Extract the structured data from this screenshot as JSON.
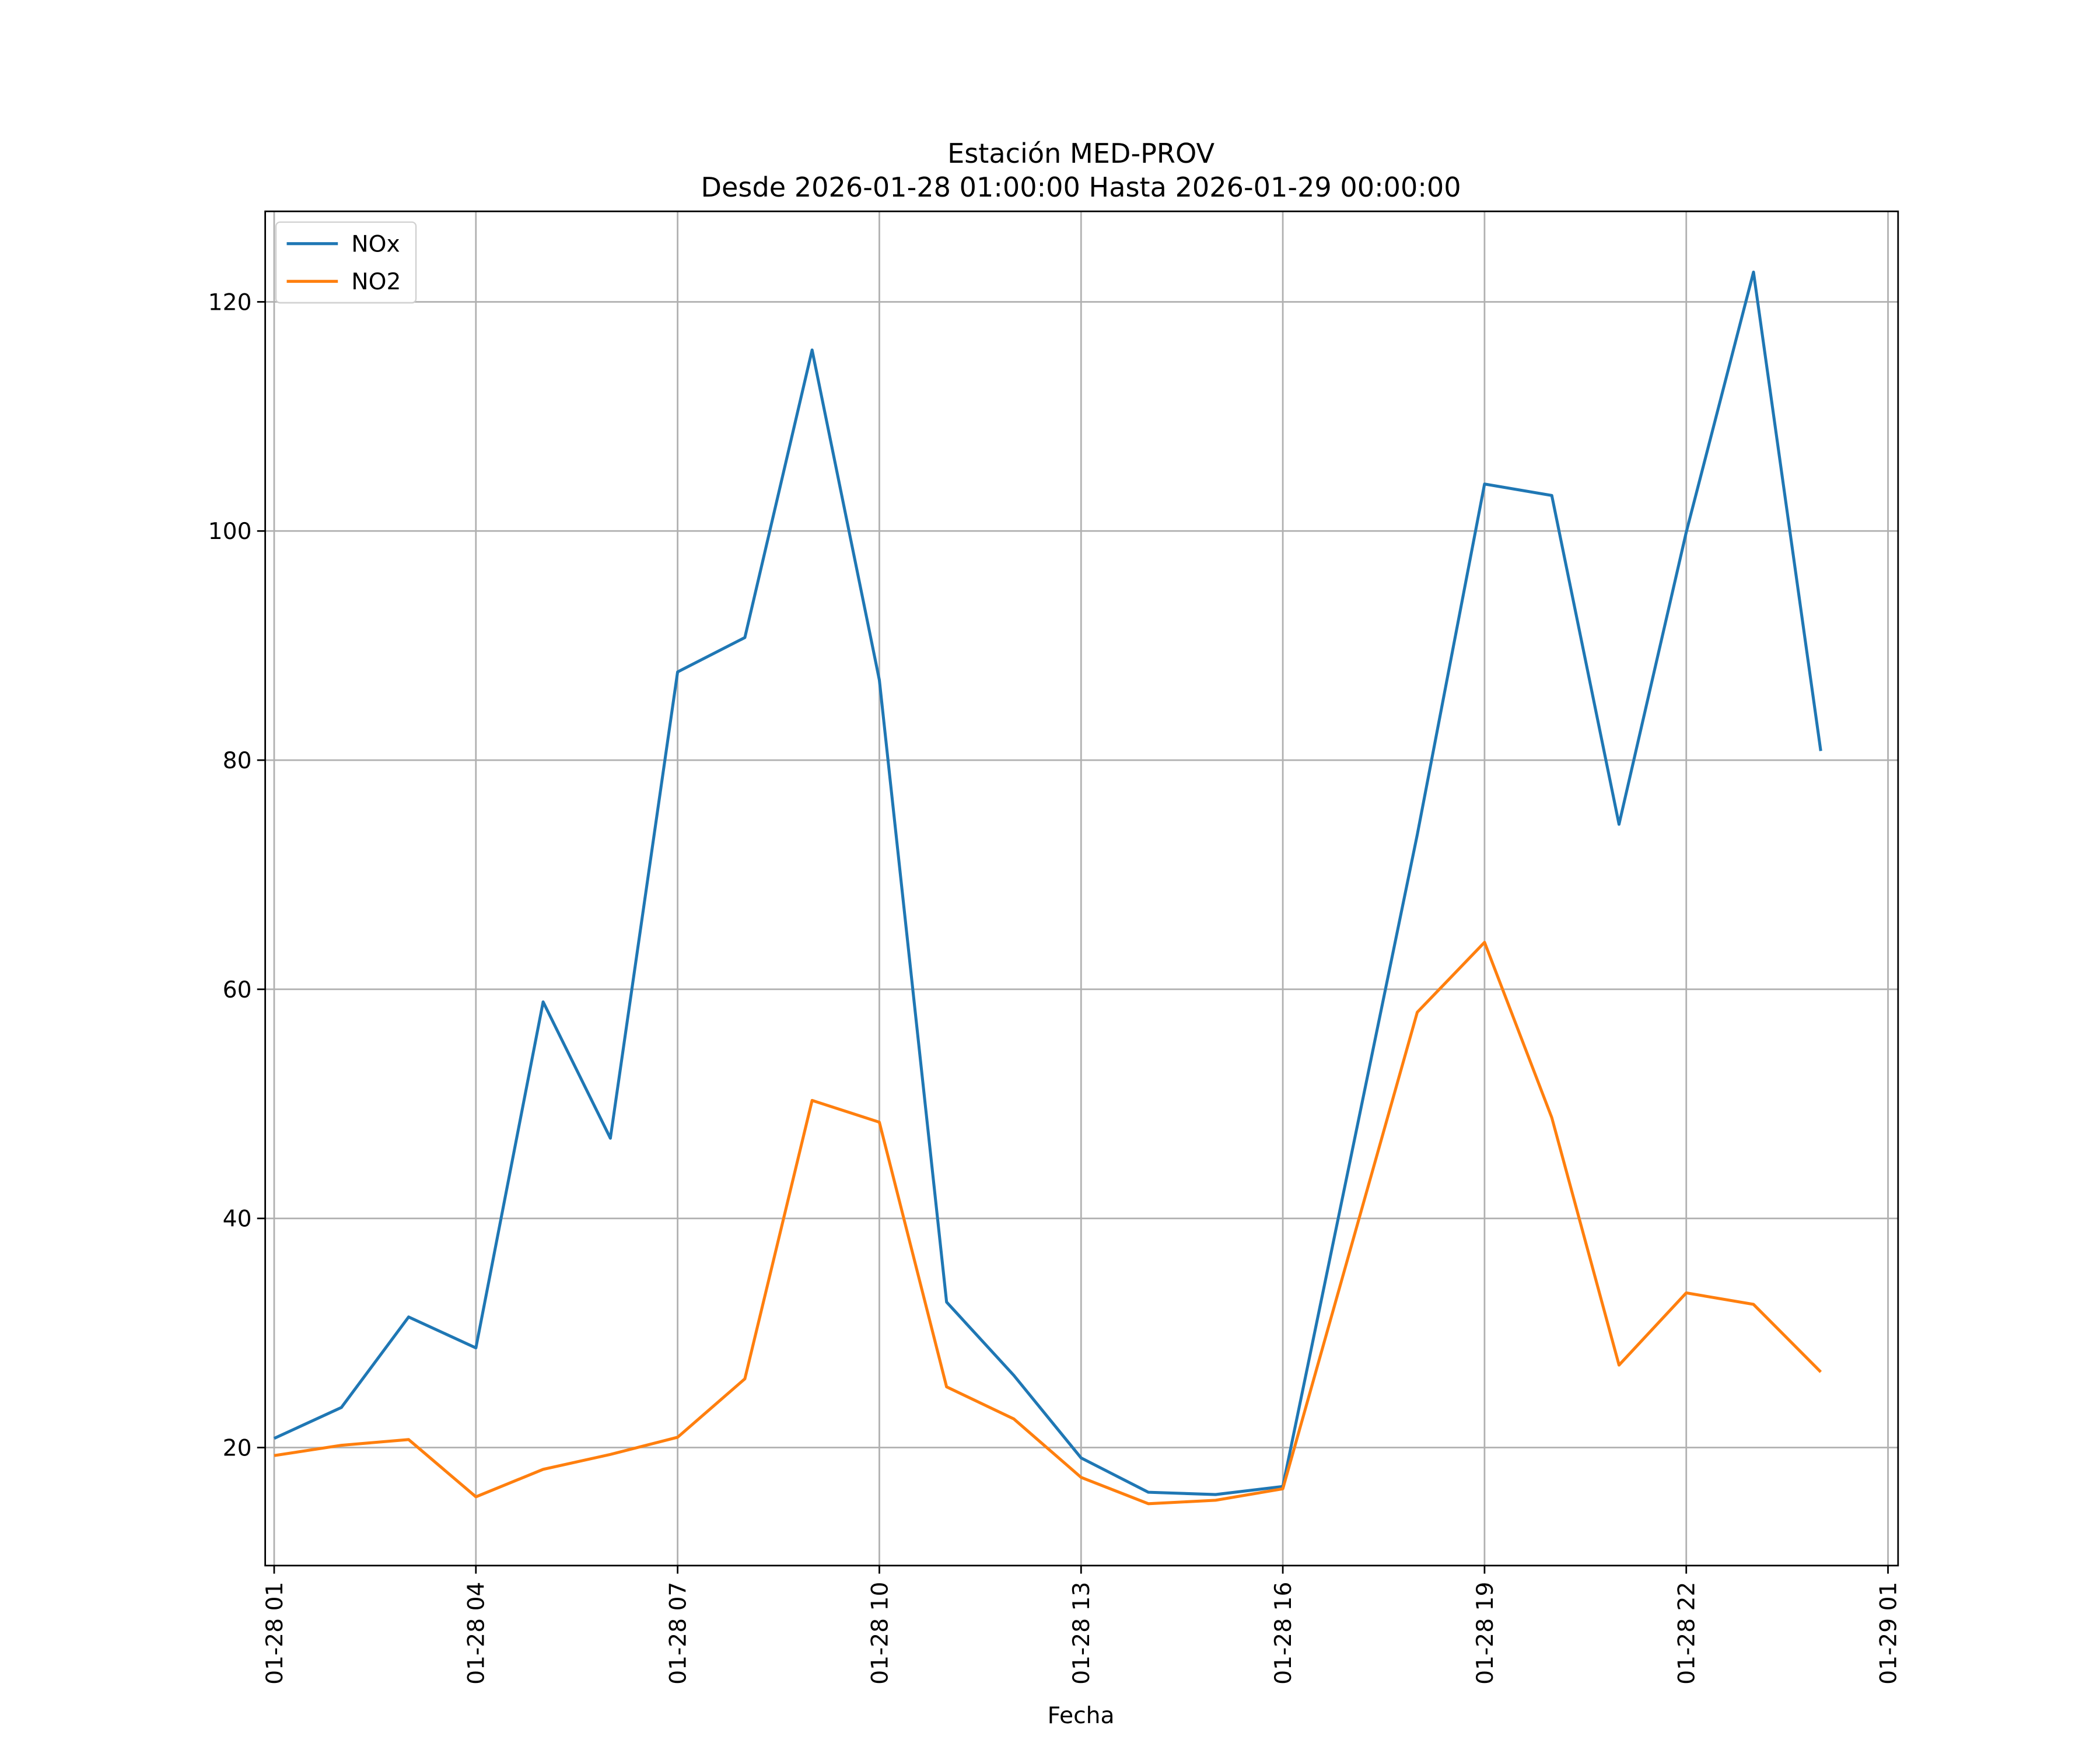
{
  "chart_data": {
    "type": "line",
    "title": "Estación MED-PROV",
    "subtitle": "Desde 2026-01-28 01:00:00 Hasta 2026-01-29 00:00:00",
    "x_label": "Fecha",
    "x": [
      "01-28 01",
      "01-28 02",
      "01-28 03",
      "01-28 04",
      "01-28 05",
      "01-28 06",
      "01-28 07",
      "01-28 08",
      "01-28 09",
      "01-28 10",
      "01-28 11",
      "01-28 12",
      "01-28 13",
      "01-28 14",
      "01-28 15",
      "01-28 16",
      "01-28 17",
      "01-28 18",
      "01-28 19",
      "01-28 20",
      "01-28 21",
      "01-28 22",
      "01-28 23",
      "01-29 00"
    ],
    "series": [
      {
        "name": "NOx",
        "color": "#1f77b4",
        "values": [
          20.8,
          23.5,
          31.4,
          28.7,
          58.9,
          47.0,
          87.7,
          90.7,
          115.8,
          87.0,
          32.7,
          26.3,
          19.1,
          16.1,
          15.9,
          16.6,
          45.0,
          73.5,
          104.1,
          103.1,
          74.4,
          99.9,
          122.6,
          80.8
        ]
      },
      {
        "name": "NO2",
        "color": "#ff7f0e",
        "values": [
          19.3,
          20.2,
          20.7,
          15.7,
          18.1,
          19.4,
          20.9,
          26.0,
          50.3,
          48.4,
          25.3,
          22.5,
          17.4,
          15.1,
          15.4,
          16.4,
          37.2,
          58.0,
          64.1,
          48.8,
          27.2,
          33.5,
          32.5,
          26.6
        ]
      }
    ],
    "xlim": [
      "01-28 00:52",
      "01-29 01:09"
    ],
    "xticks": [
      "01-28 01",
      "01-28 04",
      "01-28 07",
      "01-28 10",
      "01-28 13",
      "01-28 16",
      "01-28 19",
      "01-28 22",
      "01-29 01"
    ],
    "ylim": [
      9.7,
      127.9
    ],
    "yticks": [
      20,
      40,
      60,
      80,
      100,
      120
    ],
    "grid": true,
    "legend": "upper-left"
  }
}
